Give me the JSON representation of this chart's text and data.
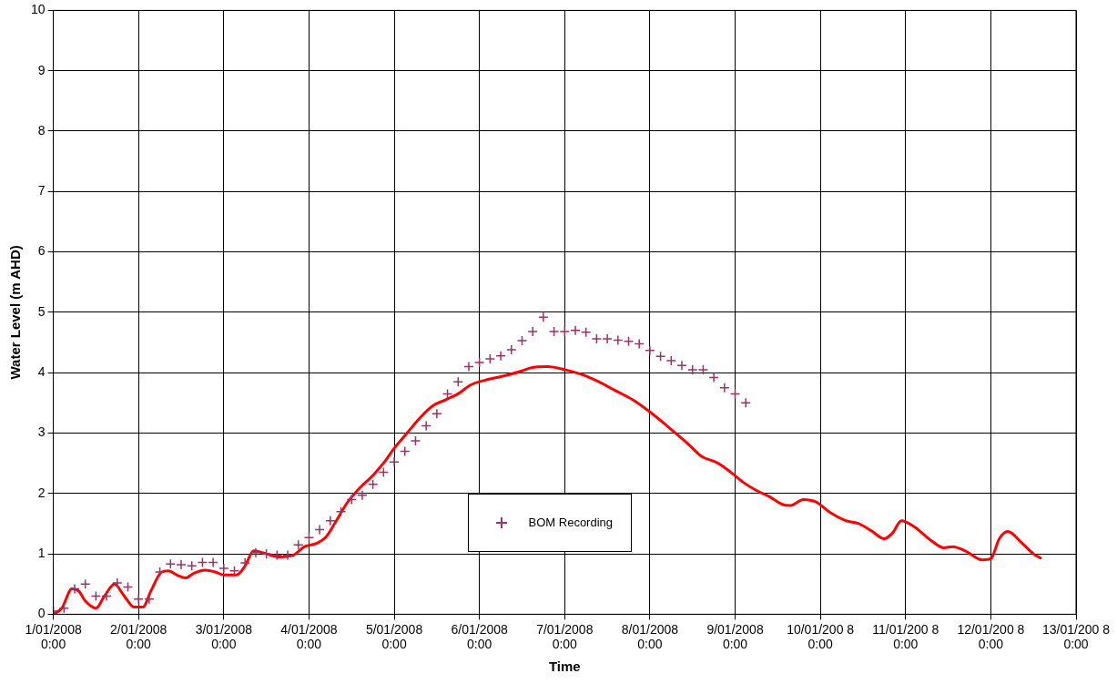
{
  "chart_data": {
    "type": "scatter",
    "xlabel": "Time",
    "ylabel": "Water Level (m AHD)",
    "xlim": [
      "2008-01-01T00:00",
      "2008-01-13T00:00"
    ],
    "xticks": [
      {
        "value": "2008-01-01T00:00",
        "label": "1/01/2008 0:00"
      },
      {
        "value": "2008-01-02T00:00",
        "label": "2/01/2008 0:00"
      },
      {
        "value": "2008-01-03T00:00",
        "label": "3/01/2008 0:00"
      },
      {
        "value": "2008-01-04T00:00",
        "label": "4/01/2008 0:00"
      },
      {
        "value": "2008-01-05T00:00",
        "label": "5/01/2008 0:00"
      },
      {
        "value": "2008-01-06T00:00",
        "label": "6/01/2008 0:00"
      },
      {
        "value": "2008-01-07T00:00",
        "label": "7/01/2008 0:00"
      },
      {
        "value": "2008-01-08T00:00",
        "label": "8/01/2008 0:00"
      },
      {
        "value": "2008-01-09T00:00",
        "label": "9/01/2008 0:00"
      },
      {
        "value": "2008-01-10T00:00",
        "label": "10/01/200 8 0:00"
      },
      {
        "value": "2008-01-11T00:00",
        "label": "11/01/200 8 0:00"
      },
      {
        "value": "2008-01-12T00:00",
        "label": "12/01/200 8 0:00"
      },
      {
        "value": "2008-01-13T00:00",
        "label": "13/01/200 8 0:00"
      }
    ],
    "ylim": [
      0,
      10
    ],
    "yticks": [
      0,
      1,
      2,
      3,
      4,
      5,
      6,
      7,
      8,
      9,
      10
    ],
    "grid": true,
    "legend": "bottom",
    "series": [
      {
        "name": "BOM Recording",
        "marker": "cross",
        "color": "#993366",
        "x": [
          "2008-01-01T00:00",
          "2008-01-01T03:00",
          "2008-01-01T06:00",
          "2008-01-01T09:00",
          "2008-01-01T12:00",
          "2008-01-01T15:00",
          "2008-01-01T18:00",
          "2008-01-01T21:00",
          "2008-01-02T00:00",
          "2008-01-02T03:00",
          "2008-01-02T06:00",
          "2008-01-02T09:00",
          "2008-01-02T12:00",
          "2008-01-02T15:00",
          "2008-01-02T18:00",
          "2008-01-02T21:00",
          "2008-01-03T00:00",
          "2008-01-03T03:00",
          "2008-01-03T06:00",
          "2008-01-03T09:00",
          "2008-01-03T12:00",
          "2008-01-03T15:00",
          "2008-01-03T18:00",
          "2008-01-03T21:00",
          "2008-01-04T00:00",
          "2008-01-04T03:00",
          "2008-01-04T06:00",
          "2008-01-04T09:00",
          "2008-01-04T12:00",
          "2008-01-04T15:00",
          "2008-01-04T18:00",
          "2008-01-04T21:00",
          "2008-01-05T00:00",
          "2008-01-05T03:00",
          "2008-01-05T06:00",
          "2008-01-05T09:00",
          "2008-01-05T12:00",
          "2008-01-05T15:00",
          "2008-01-05T18:00",
          "2008-01-05T21:00",
          "2008-01-06T00:00",
          "2008-01-06T03:00",
          "2008-01-06T06:00",
          "2008-01-06T09:00",
          "2008-01-06T12:00",
          "2008-01-06T15:00",
          "2008-01-06T18:00",
          "2008-01-06T21:00",
          "2008-01-07T00:00",
          "2008-01-07T03:00",
          "2008-01-07T06:00",
          "2008-01-07T09:00",
          "2008-01-07T12:00",
          "2008-01-07T15:00",
          "2008-01-07T18:00",
          "2008-01-07T21:00",
          "2008-01-08T00:00",
          "2008-01-08T03:00",
          "2008-01-08T06:00",
          "2008-01-08T09:00",
          "2008-01-08T12:00",
          "2008-01-08T15:00",
          "2008-01-08T18:00",
          "2008-01-08T21:00",
          "2008-01-09T00:00",
          "2008-01-09T03:00"
        ],
        "values": [
          0.05,
          0.1,
          0.42,
          0.5,
          0.3,
          0.3,
          0.52,
          0.45,
          0.25,
          0.25,
          0.7,
          0.83,
          0.82,
          0.8,
          0.86,
          0.86,
          0.76,
          0.72,
          0.85,
          1.02,
          1.0,
          0.98,
          0.98,
          1.15,
          1.27,
          1.4,
          1.55,
          1.7,
          1.9,
          1.97,
          2.15,
          2.35,
          2.52,
          2.7,
          2.87,
          3.12,
          3.32,
          3.65,
          3.85,
          4.1,
          4.17,
          4.23,
          4.28,
          4.38,
          4.53,
          4.68,
          4.92,
          4.68,
          4.68,
          4.7,
          4.67,
          4.56,
          4.56,
          4.54,
          4.52,
          4.48,
          4.37,
          4.27,
          4.2,
          4.12,
          4.05,
          4.05,
          3.92,
          3.75,
          3.65,
          3.5
        ]
      },
      {
        "type": "line",
        "marker": "none",
        "line_style": "solid",
        "color": "#ff0000",
        "x": [
          "2008-01-01T00:00",
          "2008-01-01T02:24",
          "2008-01-01T05:15",
          "2008-01-01T07:12",
          "2008-01-01T09:00",
          "2008-01-01T12:00",
          "2008-01-01T14:24",
          "2008-01-01T17:15",
          "2008-01-01T19:45",
          "2008-01-01T22:45",
          "2008-01-02T01:12",
          "2008-01-02T03:36",
          "2008-01-02T06:30",
          "2008-01-02T08:24",
          "2008-01-02T10:48",
          "2008-01-02T13:12",
          "2008-01-02T15:36",
          "2008-01-02T18:45",
          "2008-01-02T21:36",
          "2008-01-03T00:00",
          "2008-01-03T03:36",
          "2008-01-03T06:00",
          "2008-01-03T08:24",
          "2008-01-03T12:00",
          "2008-01-03T15:36",
          "2008-01-03T19:12",
          "2008-01-03T22:48",
          "2008-01-04T02:24",
          "2008-01-04T04:48",
          "2008-01-04T07:12",
          "2008-01-04T10:48",
          "2008-01-04T14:24",
          "2008-01-04T18:00",
          "2008-01-04T21:36",
          "2008-01-05T00:00",
          "2008-01-05T03:36",
          "2008-01-05T07:12",
          "2008-01-05T10:48",
          "2008-01-05T14:24",
          "2008-01-05T18:00",
          "2008-01-05T21:36",
          "2008-01-06T01:12",
          "2008-01-06T04:48",
          "2008-01-06T08:24",
          "2008-01-06T12:00",
          "2008-01-06T14:24",
          "2008-01-06T19:12",
          "2008-01-07T00:00",
          "2008-01-07T04:48",
          "2008-01-07T09:36",
          "2008-01-07T14:24",
          "2008-01-07T19:12",
          "2008-01-08T00:00",
          "2008-01-08T04:48",
          "2008-01-08T09:36",
          "2008-01-08T12:00",
          "2008-01-08T14:24",
          "2008-01-08T19:12",
          "2008-01-08T22:48",
          "2008-01-09T02:24",
          "2008-01-09T06:00",
          "2008-01-09T09:36",
          "2008-01-09T13:12",
          "2008-01-09T15:36",
          "2008-01-09T19:12",
          "2008-01-09T22:48",
          "2008-01-10T02:24",
          "2008-01-10T07:12",
          "2008-01-10T10:48",
          "2008-01-10T14:24",
          "2008-01-10T18:00",
          "2008-01-10T20:24",
          "2008-01-10T22:48",
          "2008-01-11T02:24",
          "2008-01-11T07:12",
          "2008-01-11T10:48",
          "2008-01-11T13:12",
          "2008-01-11T16:48",
          "2008-01-11T21:36",
          "2008-01-12T00:00",
          "2008-01-12T02:24",
          "2008-01-12T04:48",
          "2008-01-12T08:24",
          "2008-01-12T12:00",
          "2008-01-12T14:00"
        ],
        "values": [
          0,
          0.1,
          0.42,
          0.38,
          0.22,
          0.1,
          0.3,
          0.5,
          0.32,
          0.12,
          0.12,
          0.4,
          0.7,
          0.72,
          0.65,
          0.6,
          0.68,
          0.73,
          0.7,
          0.65,
          0.65,
          0.8,
          1.05,
          1.0,
          0.95,
          0.97,
          1.12,
          1.18,
          1.28,
          1.5,
          1.85,
          2.1,
          2.3,
          2.55,
          2.75,
          3.0,
          3.25,
          3.45,
          3.55,
          3.65,
          3.8,
          3.87,
          3.92,
          3.97,
          4.03,
          4.08,
          4.1,
          4.05,
          3.97,
          3.85,
          3.7,
          3.55,
          3.35,
          3.12,
          2.88,
          2.75,
          2.62,
          2.5,
          2.35,
          2.18,
          2.05,
          1.95,
          1.82,
          1.8,
          1.9,
          1.86,
          1.7,
          1.55,
          1.5,
          1.38,
          1.25,
          1.35,
          1.55,
          1.45,
          1.22,
          1.1,
          1.12,
          1.05,
          0.9,
          0.92,
          1.25,
          1.37,
          1.2,
          1.0,
          0.93
        ]
      }
    ]
  }
}
